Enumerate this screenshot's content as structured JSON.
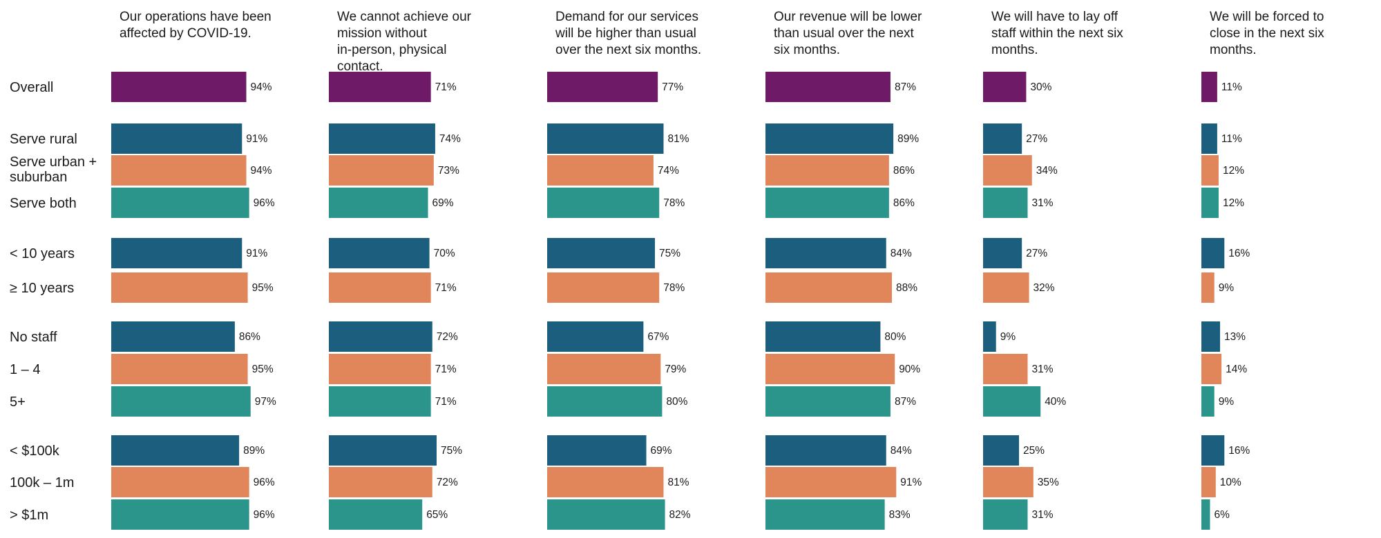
{
  "chart_data": {
    "type": "bar",
    "orientation": "horizontal",
    "xlim": [
      0,
      100
    ],
    "value_suffix": "%",
    "grid": false,
    "legend": "none",
    "colors": {
      "overall": "#6e1a66",
      "group1": "#1b5e7d",
      "group2": "#e0865a",
      "group3": "#2b958c"
    },
    "panels": [
      {
        "title": "Our operations have been affected by COVID-19.",
        "values": [
          94,
          91,
          94,
          96,
          91,
          95,
          86,
          95,
          97,
          89,
          96,
          96
        ]
      },
      {
        "title": "We cannot achieve our mission without in-person, physical contact.",
        "values": [
          71,
          74,
          73,
          69,
          70,
          71,
          72,
          71,
          71,
          75,
          72,
          65
        ]
      },
      {
        "title": "Demand for our services will be higher than usual over the next six months.",
        "values": [
          77,
          81,
          74,
          78,
          75,
          78,
          67,
          79,
          80,
          69,
          81,
          82
        ]
      },
      {
        "title": "Our revenue will be lower than usual over the next six months.",
        "values": [
          87,
          89,
          86,
          86,
          84,
          88,
          80,
          90,
          87,
          84,
          91,
          83
        ]
      },
      {
        "title": "We will have to lay off staff within the next six months.",
        "values": [
          30,
          27,
          34,
          31,
          27,
          32,
          9,
          31,
          40,
          25,
          35,
          31
        ]
      },
      {
        "title": "We will be forced to close in the next six months.",
        "values": [
          11,
          11,
          12,
          12,
          16,
          9,
          13,
          14,
          9,
          16,
          10,
          6
        ]
      }
    ],
    "rows": [
      {
        "label": "Overall",
        "color_key": "overall"
      },
      {
        "label": "Serve rural",
        "color_key": "group1"
      },
      {
        "label": "Serve urban + suburban",
        "color_key": "group2"
      },
      {
        "label": "Serve both",
        "color_key": "group3"
      },
      {
        "label": "< 10 years",
        "color_key": "group1"
      },
      {
        "label": "≥ 10 years",
        "color_key": "group2"
      },
      {
        "label": "No staff",
        "color_key": "group1"
      },
      {
        "label": "1 – 4",
        "color_key": "group2"
      },
      {
        "label": "5+",
        "color_key": "group3"
      },
      {
        "label": "< $100k",
        "color_key": "group1"
      },
      {
        "label": "100k – 1m",
        "color_key": "group2"
      },
      {
        "label": "> $1m",
        "color_key": "group3"
      }
    ]
  }
}
